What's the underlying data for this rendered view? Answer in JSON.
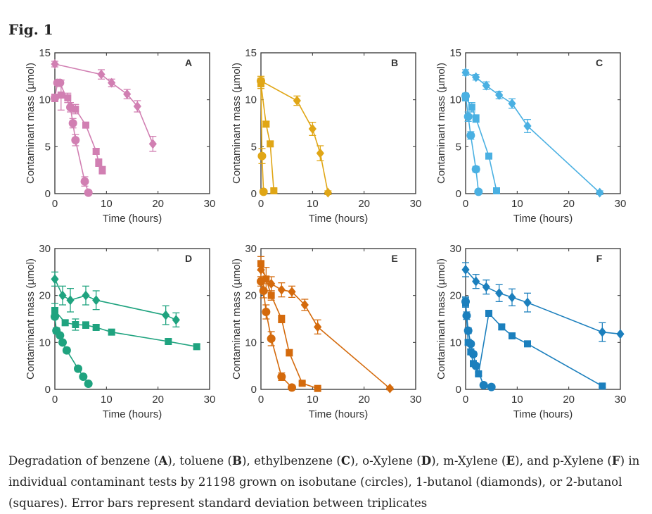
{
  "figure": {
    "title": "Fig. 1"
  },
  "caption": {
    "parts": [
      {
        "t": "Degradation of benzene ("
      },
      {
        "t": "A",
        "b": true
      },
      {
        "t": "), toluene ("
      },
      {
        "t": "B",
        "b": true
      },
      {
        "t": "), ethylbenzene ("
      },
      {
        "t": "C",
        "b": true
      },
      {
        "t": "), o-Xylene ("
      },
      {
        "t": "D",
        "b": true
      },
      {
        "t": "), m-Xylene ("
      },
      {
        "t": "E",
        "b": true
      },
      {
        "t": "), and p-Xylene ("
      },
      {
        "t": "F",
        "b": true
      },
      {
        "t": ") in individual contaminant tests by 21198 grown on isobutane (circles), 1-butanol (diamonds), or 2-butanol (squares). Error bars represent standard deviation between triplicates"
      }
    ]
  },
  "chart_data": [
    {
      "type": "line",
      "panel": "A",
      "color": "#d17fb2",
      "xlabel": "Time (hours)",
      "ylabel": "Contaminant mass (µmol)",
      "xlim": [
        0,
        30
      ],
      "ylim": [
        0,
        15
      ],
      "xticks": [
        0,
        10,
        20,
        30
      ],
      "yticks": [
        0,
        5,
        10,
        15
      ],
      "series": [
        {
          "marker": "circle",
          "x": [
            0,
            0.5,
            1,
            3,
            3.5,
            4,
            5.8,
            6.5
          ],
          "y": [
            10.2,
            11.8,
            11.8,
            9.2,
            7.5,
            5.7,
            1.3,
            0.1
          ],
          "err": [
            0,
            0,
            0,
            0.5,
            0.5,
            0.6,
            0.5,
            0.2
          ]
        },
        {
          "marker": "diamond",
          "x": [
            0,
            9,
            11,
            14,
            16,
            19
          ],
          "y": [
            13.8,
            12.7,
            11.8,
            10.6,
            9.3,
            5.3
          ],
          "err": [
            0.3,
            0.5,
            0.4,
            0.5,
            0.6,
            0.8
          ]
        },
        {
          "marker": "square",
          "x": [
            0,
            1.2,
            2.5,
            4,
            6,
            8,
            8.5,
            9.2
          ],
          "y": [
            10.2,
            10.5,
            10.2,
            9.0,
            7.3,
            4.5,
            3.3,
            2.5
          ],
          "err": [
            0.4,
            1.6,
            0.5,
            0.5,
            0.3,
            0.3,
            0.4,
            0.4
          ]
        }
      ]
    },
    {
      "type": "line",
      "panel": "B",
      "color": "#e0a616",
      "xlabel": "Time (hours)",
      "ylabel": "Contaminant mass (µmol)",
      "xlim": [
        0,
        30
      ],
      "ylim": [
        0,
        15
      ],
      "xticks": [
        0,
        10,
        20,
        30
      ],
      "yticks": [
        0,
        5,
        10,
        15
      ],
      "series": [
        {
          "marker": "circle",
          "x": [
            0,
            0.2,
            0.5
          ],
          "y": [
            12.0,
            4.0,
            0.2
          ],
          "err": [
            0.3,
            0.8,
            0.2
          ]
        },
        {
          "marker": "diamond",
          "x": [
            0,
            7,
            10,
            11.5,
            13
          ],
          "y": [
            12.0,
            9.9,
            6.9,
            4.3,
            0.1
          ],
          "err": [
            0.5,
            0.5,
            0.7,
            0.8,
            0.2
          ]
        },
        {
          "marker": "square",
          "x": [
            0,
            1,
            1.8,
            2.5
          ],
          "y": [
            11.7,
            7.4,
            5.3,
            0.3
          ],
          "err": [
            0.5,
            0.3,
            0.3,
            0.2
          ]
        }
      ]
    },
    {
      "type": "line",
      "panel": "C",
      "color": "#4ab0e2",
      "xlabel": "Time (hours)",
      "ylabel": "Contaminant mass (µmol)",
      "xlim": [
        0,
        30
      ],
      "ylim": [
        0,
        15
      ],
      "xticks": [
        0,
        10,
        20,
        30
      ],
      "yticks": [
        0,
        5,
        10,
        15
      ],
      "series": [
        {
          "marker": "circle",
          "x": [
            0,
            0.5,
            1,
            2,
            2.5
          ],
          "y": [
            10.4,
            8.2,
            6.2,
            2.6,
            0.2
          ],
          "err": [
            0.3,
            0.5,
            0.4,
            0.3,
            0.2
          ]
        },
        {
          "marker": "diamond",
          "x": [
            0,
            2,
            4,
            6.5,
            9,
            12,
            26
          ],
          "y": [
            12.9,
            12.4,
            11.5,
            10.5,
            9.6,
            7.2,
            0.1
          ],
          "err": [
            0.3,
            0.3,
            0.4,
            0.4,
            0.5,
            0.7,
            0.2
          ]
        },
        {
          "marker": "square",
          "x": [
            0,
            1.2,
            2,
            4.5,
            6
          ],
          "y": [
            10.2,
            9.2,
            8.0,
            4.0,
            0.3
          ],
          "err": [
            0.3,
            0.5,
            0.4,
            0.3,
            0.2
          ]
        }
      ]
    },
    {
      "type": "line",
      "panel": "D",
      "color": "#1fa37f",
      "xlabel": "Time (hours)",
      "ylabel": "Contaminant mass (µmol)",
      "xlim": [
        0,
        30
      ],
      "ylim": [
        0,
        30
      ],
      "xticks": [
        0,
        10,
        20,
        30
      ],
      "yticks": [
        0,
        10,
        20,
        30
      ],
      "series": [
        {
          "marker": "circle",
          "x": [
            0,
            0.3,
            1,
            1.5,
            2.3,
            4.5,
            5.5,
            6.5
          ],
          "y": [
            15.5,
            12.5,
            11.5,
            10.0,
            8.3,
            4.4,
            2.7,
            1.2
          ],
          "err": [
            0.5,
            0.6,
            0.4,
            0.4,
            0.5,
            0.3,
            0.3,
            0.2
          ]
        },
        {
          "marker": "diamond",
          "x": [
            0,
            1.5,
            3,
            6,
            8,
            21.5,
            23.5
          ],
          "y": [
            23.5,
            20.0,
            19.0,
            20.0,
            19.0,
            15.8,
            14.8
          ],
          "err": [
            1.5,
            2.0,
            2.5,
            2.0,
            2.0,
            2.0,
            1.5
          ]
        },
        {
          "marker": "square",
          "x": [
            0,
            2,
            4,
            6,
            8,
            11,
            22,
            27.5
          ],
          "y": [
            16.8,
            14.2,
            13.8,
            13.7,
            13.2,
            12.2,
            10.2,
            9.1
          ],
          "err": [
            1.5,
            0.5,
            1.2,
            0.7,
            0.5,
            0.5,
            0.5,
            0.5
          ]
        }
      ]
    },
    {
      "type": "line",
      "panel": "E",
      "color": "#d46a0c",
      "xlabel": "Time (hours)",
      "ylabel": "Contaminant mass (µmol)",
      "xlim": [
        0,
        30
      ],
      "ylim": [
        0,
        30
      ],
      "xticks": [
        0,
        10,
        20,
        30
      ],
      "yticks": [
        0,
        10,
        20,
        30
      ],
      "series": [
        {
          "marker": "circle",
          "x": [
            0,
            0.5,
            1,
            2,
            4,
            6
          ],
          "y": [
            23.0,
            21.0,
            16.5,
            10.8,
            2.7,
            0.4
          ],
          "err": [
            1.0,
            1.5,
            1.5,
            1.5,
            0.8,
            0.3
          ]
        },
        {
          "marker": "diamond",
          "x": [
            0,
            2,
            4,
            6,
            8.5,
            11,
            25
          ],
          "y": [
            25.5,
            22.5,
            21.2,
            20.8,
            18.0,
            13.3,
            0.2
          ],
          "err": [
            1.5,
            1.5,
            1.5,
            1.2,
            1.2,
            1.5,
            0.3
          ]
        },
        {
          "marker": "square",
          "x": [
            0,
            1,
            2,
            4,
            5.5,
            8,
            11
          ],
          "y": [
            26.8,
            23.5,
            20.0,
            15.0,
            7.8,
            1.3,
            0.2
          ],
          "err": [
            1.5,
            2.5,
            1.0,
            0.8,
            0.7,
            0.4,
            0.2
          ]
        }
      ]
    },
    {
      "type": "line",
      "panel": "F",
      "color": "#1b7fbd",
      "xlabel": "Time (hours)",
      "ylabel": "Contaminant mass (µmol)",
      "xlim": [
        0,
        30
      ],
      "ylim": [
        0,
        30
      ],
      "xticks": [
        0,
        10,
        20,
        30
      ],
      "yticks": [
        0,
        10,
        20,
        30
      ],
      "series": [
        {
          "marker": "circle",
          "x": [
            0,
            0.2,
            0.5,
            1,
            1.5,
            2,
            3.5,
            5
          ],
          "y": [
            18.7,
            15.7,
            12.5,
            9.7,
            7.5,
            5.0,
            0.9,
            0.5
          ],
          "err": [
            1.0,
            0.8,
            0.6,
            0.5,
            0.5,
            0.4,
            0.3,
            0.2
          ]
        },
        {
          "marker": "diamond",
          "x": [
            0,
            2,
            4,
            6.5,
            9,
            12,
            26.5,
            30
          ],
          "y": [
            25.5,
            23.0,
            21.8,
            20.5,
            19.6,
            18.5,
            12.2,
            11.8
          ],
          "err": [
            1.5,
            1.5,
            1.5,
            1.8,
            1.8,
            2.0,
            2.0,
            0
          ]
        },
        {
          "marker": "square",
          "x": [
            0,
            0.5,
            1,
            1.5,
            2.5,
            4.5,
            7,
            9,
            12,
            26.5
          ],
          "y": [
            18.5,
            10.0,
            8.0,
            5.5,
            3.3,
            16.2,
            13.3,
            11.4,
            9.7,
            0.7
          ],
          "err": [
            1.0,
            0.5,
            0.5,
            0.5,
            0.4,
            0.5,
            0.5,
            0.5,
            0.5,
            0.3
          ]
        }
      ]
    }
  ]
}
